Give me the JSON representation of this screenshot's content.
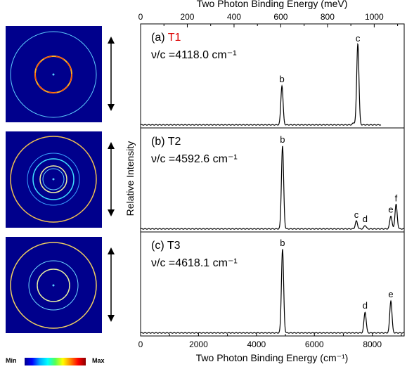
{
  "chart_data": {
    "type": "line",
    "x_top_label": "Two Photon Binding Energy (meV)",
    "x_bottom_label": "Two Photon Binding Energy (cm⁻¹)",
    "ylabel": "Relative Intensity",
    "xlim_cm": [
      0,
      9100
    ],
    "top_ticks": [
      "0",
      "200",
      "400",
      "600",
      "800",
      "1000"
    ],
    "bottom_ticks": [
      "0",
      "2000",
      "4000",
      "6000",
      "8000"
    ],
    "panels": [
      {
        "tag": "(a)",
        "name": "T1",
        "name_color": "#dd0000",
        "freq_label": "ν/c =4118.0 cm⁻¹",
        "end_x": 8300,
        "peaks": [
          {
            "label": "b",
            "x": 4880,
            "height": 0.45
          },
          {
            "label": "",
            "x": 7350,
            "height": 0.02
          },
          {
            "label": "",
            "x": 7450,
            "height": 0.03
          },
          {
            "label": "c",
            "x": 7500,
            "height": 0.92
          }
        ]
      },
      {
        "tag": "(b)",
        "name": "T2",
        "name_color": "#000000",
        "freq_label": "ν/c =4592.6 cm⁻¹",
        "end_x": 9100,
        "peaks": [
          {
            "label": "b",
            "x": 4900,
            "height": 0.95
          },
          {
            "label": "c",
            "x": 7450,
            "height": 0.09
          },
          {
            "label": "d",
            "x": 7750,
            "height": 0.04
          },
          {
            "label": "e",
            "x": 8640,
            "height": 0.15
          },
          {
            "label": "f",
            "x": 8820,
            "height": 0.28
          }
        ]
      },
      {
        "tag": "(c)",
        "name": "T3",
        "name_color": "#000000",
        "freq_label": "ν/c =4618.1 cm⁻¹",
        "end_x": 9100,
        "peaks": [
          {
            "label": "b",
            "x": 4900,
            "height": 0.96
          },
          {
            "label": "d",
            "x": 7750,
            "height": 0.24
          },
          {
            "label": "e",
            "x": 8640,
            "height": 0.37
          }
        ]
      }
    ]
  },
  "colorbar": {
    "min_label": "Min",
    "max_label": "Max"
  },
  "colors": {
    "axis": "#000000",
    "trace": "#000000",
    "image_bg": "#00008c"
  }
}
